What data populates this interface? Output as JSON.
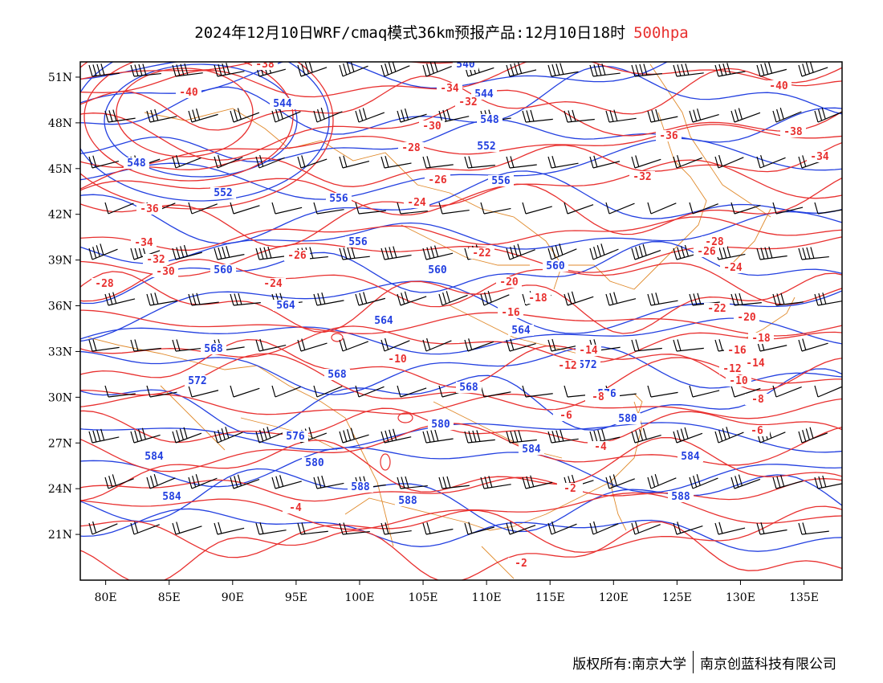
{
  "header": {
    "title": "2024年12月10日WRF/cmaq模式36km预报产品:12月10日18时",
    "level": "500hpa"
  },
  "footer": {
    "copyright": "版权所有:南京大学",
    "company": "南京创蓝科技有限公司"
  },
  "map": {
    "lon_range": [
      78,
      138
    ],
    "lat_range": [
      18,
      52
    ],
    "lon_ticks": [
      "80E",
      "85E",
      "90E",
      "95E",
      "100E",
      "105E",
      "110E",
      "115E",
      "120E",
      "125E",
      "130E",
      "135E"
    ],
    "lat_ticks": [
      "51N",
      "48N",
      "45N",
      "42N",
      "39N",
      "36N",
      "33N",
      "30N",
      "27N",
      "24N",
      "21N"
    ],
    "colors": {
      "geopotential": "#2340e0",
      "temperature": "#e8302f",
      "boundaries": "#e08a2c",
      "wind": "#000000"
    },
    "geopotential_labels": [
      "540",
      "544",
      "544",
      "548",
      "548",
      "552",
      "552",
      "556",
      "556",
      "556",
      "560",
      "560",
      "560",
      "564",
      "564",
      "564",
      "568",
      "568",
      "568",
      "572",
      "572",
      "576",
      "576",
      "580",
      "580",
      "580",
      "584",
      "584",
      "584",
      "584",
      "588",
      "588",
      "588"
    ],
    "temperature_labels": [
      "-38",
      "-40",
      "-34",
      "-32",
      "-30",
      "-28",
      "-26",
      "-24",
      "-36",
      "-34",
      "-32",
      "-30",
      "-28",
      "-26",
      "-24",
      "-22",
      "-20",
      "-18",
      "-16",
      "-14",
      "-12",
      "-10",
      "-8",
      "-6",
      "-4",
      "-2",
      "-40",
      "-38",
      "-36",
      "-34",
      "-32",
      "-28",
      "-26",
      "-24",
      "-22",
      "-20",
      "-18",
      "-16",
      "-14",
      "-12",
      "-10",
      "-8",
      "-6",
      "-4",
      "-2"
    ]
  }
}
